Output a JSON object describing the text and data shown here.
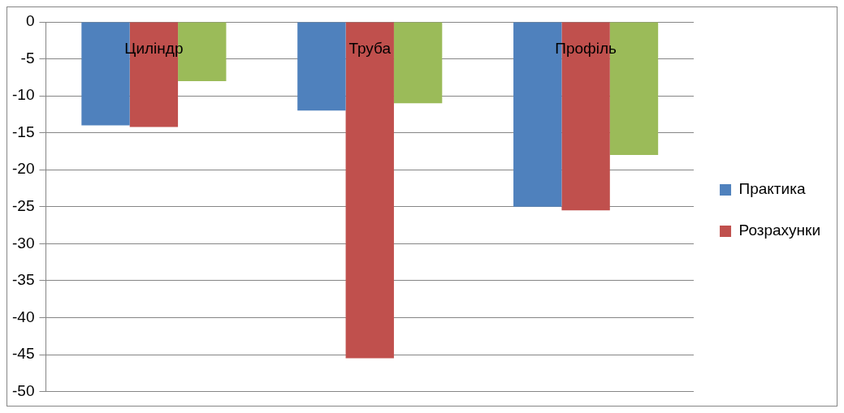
{
  "chart_data": {
    "type": "bar",
    "categories": [
      "Циліндр",
      "Труба",
      "Профіль"
    ],
    "series": [
      {
        "name": "Практика",
        "color": "#4f81bd",
        "values": [
          -14,
          -12,
          -25
        ]
      },
      {
        "name": "Розрахунки",
        "color": "#c0504d",
        "values": [
          -14.2,
          -45.5,
          -25.5
        ]
      },
      {
        "color": "#9bbb59",
        "values": [
          -8,
          -11,
          -18
        ]
      }
    ],
    "ylim": [
      -50,
      0
    ],
    "yticks": [
      0,
      -5,
      -10,
      -15,
      -20,
      -25,
      -30,
      -35,
      -40,
      -45,
      -50
    ],
    "grid": "y",
    "legend": "right"
  }
}
